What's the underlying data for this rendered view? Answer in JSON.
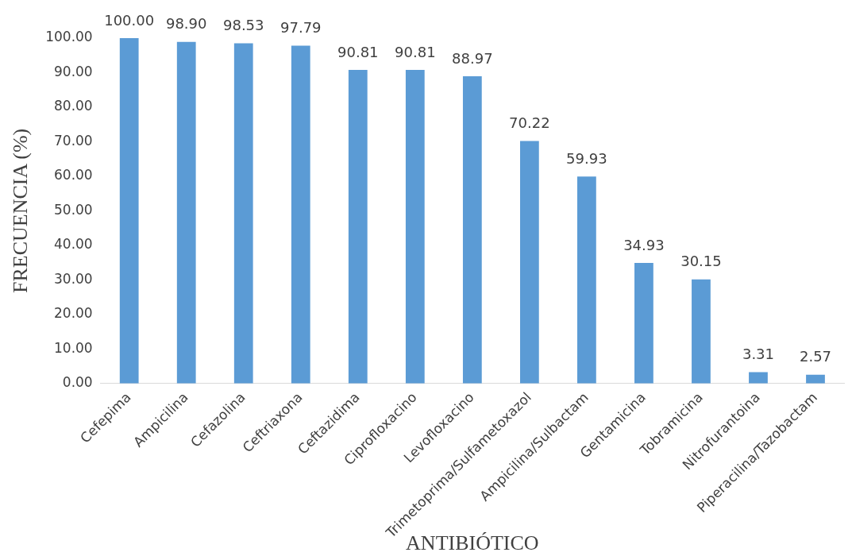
{
  "chart_data": {
    "type": "bar",
    "xlabel": "ANTIBIÓTICO",
    "ylabel": "FRECUENCIA (%)",
    "categories": [
      "Cefepima",
      "Ampicilina",
      "Cefazolina",
      "Ceftriaxona",
      "Ceftazidima",
      "Ciprofloxacino",
      "Levofloxacino",
      "Trimetoprima/Sulfametoxazol",
      "Ampicilina/Sulbactam",
      "Gentamicina",
      "Tobramicina",
      "Nitrofurantoina",
      "Piperacilina/Tazobactam"
    ],
    "values": [
      100.0,
      98.9,
      98.53,
      97.79,
      90.81,
      90.81,
      88.97,
      70.22,
      59.93,
      34.93,
      30.15,
      3.31,
      2.57
    ],
    "value_labels": [
      "100.00",
      "98.90",
      "98.53",
      "97.79",
      "90.81",
      "90.81",
      "88.97",
      "70.22",
      "59.93",
      "34.93",
      "30.15",
      "3.31",
      "2.57"
    ],
    "color": "#5b9bd5",
    "ylim": [
      0,
      100
    ],
    "yticks": [
      {
        "value": 0,
        "label": "0.00"
      },
      {
        "value": 10,
        "label": "10.00"
      },
      {
        "value": 20,
        "label": "20.00"
      },
      {
        "value": 30,
        "label": "30.00"
      },
      {
        "value": 40,
        "label": "40.00"
      },
      {
        "value": 50,
        "label": "50.00"
      },
      {
        "value": 60,
        "label": "60.00"
      },
      {
        "value": 70,
        "label": "70.00"
      },
      {
        "value": 80,
        "label": "80.00"
      },
      {
        "value": 90,
        "label": "90.00"
      },
      {
        "value": 100,
        "label": "100.00"
      }
    ],
    "grid": false,
    "legend": false
  }
}
